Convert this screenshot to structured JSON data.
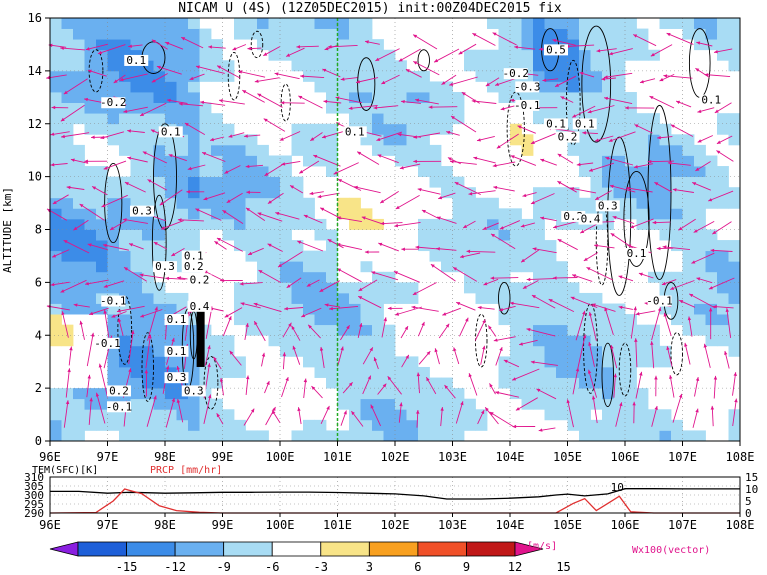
{
  "title": "NICAM U (4S) (12Z05DEC2015) init:00Z04DEC2015 fix",
  "colors": {
    "magenta": "#e0148c",
    "prcp_red": "#e03030",
    "marker_green": "#22aa22",
    "frame": "#000000"
  },
  "chart_data": [
    {
      "type": "heatmap",
      "title": "NICAM U (4S) (12Z05DEC2015) init:00Z04DEC2015 fix",
      "xlabel": "",
      "ylabel": "ALTITUDE [km]",
      "x_ticks": [
        "96E",
        "97E",
        "98E",
        "99E",
        "100E",
        "101E",
        "102E",
        "103E",
        "104E",
        "105E",
        "106E",
        "107E",
        "108E"
      ],
      "x_range": [
        96,
        108
      ],
      "y_ticks": [
        "0",
        "2",
        "4",
        "6",
        "8",
        "10",
        "12",
        "14",
        "16"
      ],
      "y_range": [
        0,
        16
      ],
      "grid": true,
      "marker_lon": 101,
      "contour_labels": [
        "0.1",
        "-0.2",
        "0.1",
        "0.3",
        "0.3",
        "-0.1",
        "0.2",
        "0.4",
        "0.1",
        "0.2",
        "0.3",
        "-0.1",
        "0.1",
        "-0.1",
        "0.2",
        "0.1",
        "0.3",
        "0.1",
        "-0.2",
        "0.5",
        "-0.3",
        "-0.1",
        "0.1",
        "0.2",
        "0.1",
        "0.2",
        "0.4",
        "0.3",
        "0.1",
        "0.1",
        "-0.1"
      ]
    },
    {
      "type": "line",
      "title": "",
      "x_ticks": [
        "96E",
        "97E",
        "98E",
        "99E",
        "100E",
        "101E",
        "102E",
        "103E",
        "104E",
        "105E",
        "106E",
        "107E",
        "108E"
      ],
      "x_range": [
        96,
        108
      ],
      "left_axis": {
        "label": "TEM(SFC)[K]",
        "ticks": [
          "290",
          "295",
          "300",
          "305",
          "310"
        ],
        "range": [
          290,
          310
        ]
      },
      "right_axis": {
        "label": "PRCP [mm/hr]",
        "ticks": [
          "0",
          "5",
          "10",
          "15"
        ],
        "range": [
          0,
          15
        ]
      },
      "series": [
        {
          "name": "TEM(SFC)[K]",
          "axis": "left",
          "color": "#000000",
          "points": [
            [
              96,
              302
            ],
            [
              96.5,
              302
            ],
            [
              97,
              301
            ],
            [
              97.4,
              301.5
            ],
            [
              98,
              301
            ],
            [
              98.5,
              301.2
            ],
            [
              99,
              301.5
            ],
            [
              99.5,
              301.5
            ],
            [
              100,
              301.6
            ],
            [
              100.5,
              301.6
            ],
            [
              101,
              301.4
            ],
            [
              101.5,
              301
            ],
            [
              102,
              300.6
            ],
            [
              102.5,
              299.5
            ],
            [
              102.9,
              297.8
            ],
            [
              103.5,
              297.8
            ],
            [
              104,
              298.2
            ],
            [
              104.5,
              299
            ],
            [
              104.8,
              300
            ],
            [
              105,
              300.5
            ],
            [
              105.3,
              299.5
            ],
            [
              105.7,
              300.6
            ],
            [
              106,
              303.5
            ],
            [
              106.5,
              303.5
            ],
            [
              107,
              303.4
            ],
            [
              107.5,
              303.4
            ],
            [
              108,
              303.4
            ]
          ]
        },
        {
          "name": "PRCP [mm/hr]",
          "axis": "right",
          "color": "#e03030",
          "points": [
            [
              96,
              0
            ],
            [
              96.8,
              0.2
            ],
            [
              97.1,
              5
            ],
            [
              97.3,
              10
            ],
            [
              97.6,
              8
            ],
            [
              97.9,
              3
            ],
            [
              98.2,
              1
            ],
            [
              98.6,
              0.3
            ],
            [
              99,
              0
            ],
            [
              104.8,
              0
            ],
            [
              105.1,
              4
            ],
            [
              105.3,
              6
            ],
            [
              105.5,
              1
            ],
            [
              105.7,
              4
            ],
            [
              105.9,
              7
            ],
            [
              106.1,
              0.5
            ],
            [
              106.5,
              0
            ],
            [
              108,
              0
            ]
          ]
        }
      ],
      "annotation": "10"
    }
  ],
  "colorbar": {
    "ticks": [
      "-15",
      "-12",
      "-9",
      "-6",
      "-3",
      "3",
      "6",
      "9",
      "12",
      "15"
    ],
    "unit": "[m/s]",
    "bins": [
      {
        "color": "#8a1fe0"
      },
      {
        "color": "#1e5fd8"
      },
      {
        "color": "#3c8ce8"
      },
      {
        "color": "#6ab0f0"
      },
      {
        "color": "#a8dcf4"
      },
      {
        "color": "#ffffff"
      },
      {
        "color": "#f8e488"
      },
      {
        "color": "#f8a020"
      },
      {
        "color": "#f05028"
      },
      {
        "color": "#c01818"
      },
      {
        "color": "#e0148c"
      }
    ]
  },
  "vector_label": "Wx100(vector)"
}
